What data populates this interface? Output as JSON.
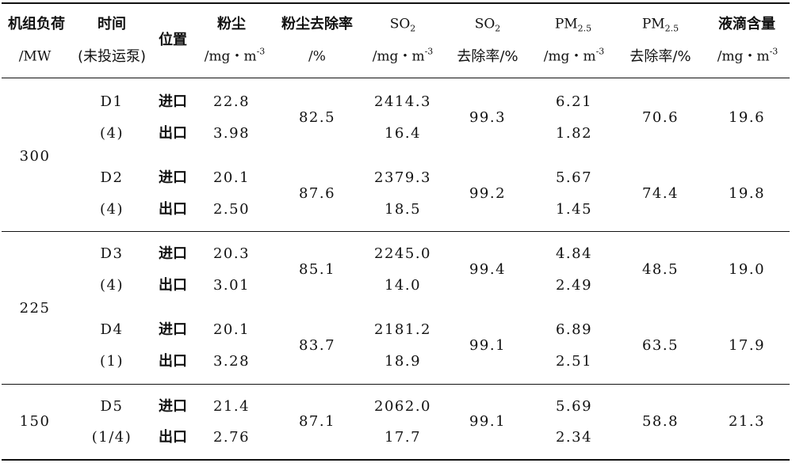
{
  "table": {
    "headers": {
      "load_l1": "机组负荷",
      "load_l2": "/MW",
      "time_l1": "时间",
      "time_l2": "(未投运泵)",
      "position": "位置",
      "dust_l1": "粉尘",
      "dust_unit_a": "/mg・m",
      "dust_unit_sup": "-3",
      "dust_rate_l1": "粉尘去除率",
      "dust_rate_l2": "/%",
      "so2_base": "SO",
      "so2_sub": "2",
      "so2_unit_a": "/mg・m",
      "so2_unit_sup": "-3",
      "so2r_base": "SO",
      "so2r_sub": "2",
      "so2r_l2": "去除率/%",
      "pm_base": "PM",
      "pm_sub": "2.5",
      "pm_unit_a": "/mg・m",
      "pm_unit_sup": "-3",
      "pmr_base": "PM",
      "pmr_sub": "2.5",
      "pmr_l2": "去除率/%",
      "droplet_l1": "液滴含量",
      "droplet_unit_a": "/mg・m",
      "droplet_unit_sup": "-3"
    },
    "inlet_label": "进口",
    "outlet_label": "出口",
    "groups": [
      {
        "load": "300",
        "runs": [
          {
            "id": "D1",
            "pumps": "(4)",
            "dust_in": "22.8",
            "dust_out": "3.98",
            "dust_rate": "82.5",
            "so2_in": "2414.3",
            "so2_out": "16.4",
            "so2_rate": "99.3",
            "pm_in": "6.21",
            "pm_out": "1.82",
            "pm_rate": "70.6",
            "droplet": "19.6"
          },
          {
            "id": "D2",
            "pumps": "(4)",
            "dust_in": "20.1",
            "dust_out": "2.50",
            "dust_rate": "87.6",
            "so2_in": "2379.3",
            "so2_out": "18.5",
            "so2_rate": "99.2",
            "pm_in": "5.67",
            "pm_out": "1.45",
            "pm_rate": "74.4",
            "droplet": "19.8"
          }
        ]
      },
      {
        "load": "225",
        "runs": [
          {
            "id": "D3",
            "pumps": "(4)",
            "dust_in": "20.3",
            "dust_out": "3.01",
            "dust_rate": "85.1",
            "so2_in": "2245.0",
            "so2_out": "14.0",
            "so2_rate": "99.4",
            "pm_in": "4.84",
            "pm_out": "2.49",
            "pm_rate": "48.5",
            "droplet": "19.0"
          },
          {
            "id": "D4",
            "pumps": "(1)",
            "dust_in": "20.1",
            "dust_out": "3.28",
            "dust_rate": "83.7",
            "so2_in": "2181.2",
            "so2_out": "18.9",
            "so2_rate": "99.1",
            "pm_in": "6.89",
            "pm_out": "2.51",
            "pm_rate": "63.5",
            "droplet": "17.9"
          }
        ]
      },
      {
        "load": "150",
        "runs": [
          {
            "id": "D5",
            "pumps": "(1/4)",
            "dust_in": "21.4",
            "dust_out": "2.76",
            "dust_rate": "87.1",
            "so2_in": "2062.0",
            "so2_out": "17.7",
            "so2_rate": "99.1",
            "pm_in": "5.69",
            "pm_out": "2.34",
            "pm_rate": "58.8",
            "droplet": "21.3"
          }
        ]
      }
    ]
  }
}
